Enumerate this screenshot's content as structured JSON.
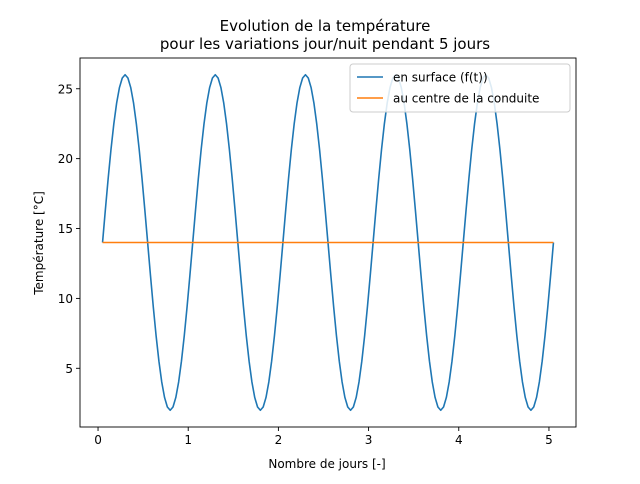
{
  "chart_data": {
    "type": "line",
    "title": "Evolution de la température\npour les variations jour/nuit pendant 5 jours",
    "xlabel": "Nombre de jours [-]",
    "ylabel": "Température [°C]",
    "xlim": [
      -0.2,
      5.3
    ],
    "ylim": [
      0.8,
      27.2
    ],
    "xticks": [
      0,
      1,
      2,
      3,
      4,
      5
    ],
    "yticks": [
      5,
      10,
      15,
      20,
      25
    ],
    "grid": false,
    "legend_position": "top-right",
    "x_start": 0.05,
    "x_end": 5.05,
    "samples": 161,
    "series": [
      {
        "name": "en surface (f(t))",
        "color": "#1f77b4",
        "function": "mean + amplitude*sin(2*pi*(x - x0))",
        "mean": 14,
        "amplitude": 12,
        "x0": 0.05
      },
      {
        "name": "au centre de la conduite",
        "color": "#ff7f0e",
        "function": "constant",
        "value": 14
      }
    ]
  }
}
